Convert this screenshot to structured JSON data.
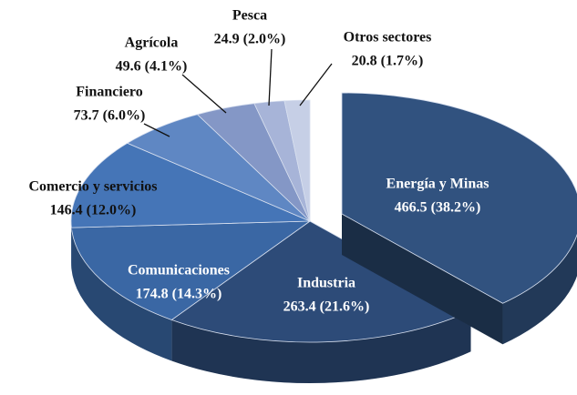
{
  "chart_data": {
    "type": "pie3d",
    "categories": [
      "Energía y Minas",
      "Industria",
      "Comunicaciones",
      "Comercio y servicios",
      "Financiero",
      "Agrícola",
      "Pesca",
      "Otros sectores"
    ],
    "values": [
      466.5,
      263.4,
      174.8,
      146.4,
      73.7,
      49.6,
      24.9,
      20.8
    ],
    "value_labels": [
      "466.5  (38.2%)",
      "263.4  (21.6%)",
      "174.8 (14.3%)",
      "146.4  (12.0%)",
      "73.7 (6.0%)",
      "49.6 (4.1%)",
      "24.9  (2.0%)",
      "20.8   (1.7%)"
    ],
    "colors": [
      "#31527f",
      "#2d4b78",
      "#3a67a4",
      "#4575b7",
      "#5f87c3",
      "#8497c6",
      "#a7b4d8",
      "#c6cfe6"
    ],
    "exploded": [
      0
    ]
  }
}
